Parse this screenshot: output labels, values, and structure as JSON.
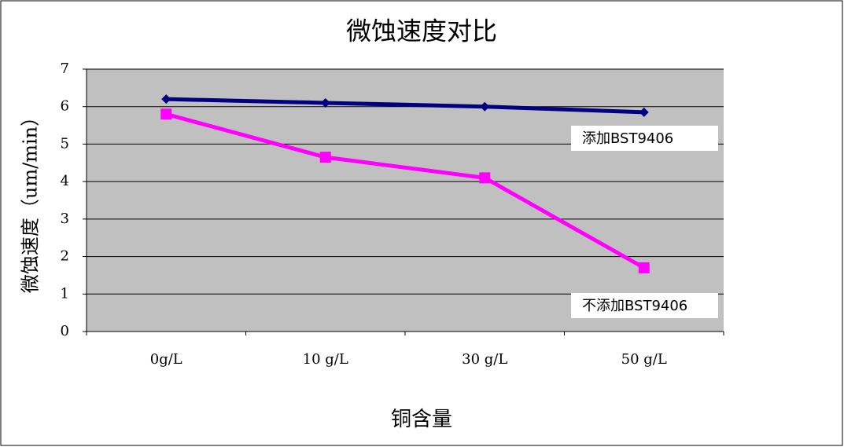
{
  "chart_data": {
    "type": "line",
    "title": "微蚀速度对比",
    "x_label": "铜含量",
    "y_label": "微蚀速度（um/min）",
    "categories": [
      "0g/L",
      "10 g/L",
      "30 g/L",
      "50 g/L"
    ],
    "series": [
      {
        "name": "添加BST9406",
        "color": "#000080",
        "marker": "diamond",
        "values": [
          6.2,
          6.1,
          6.0,
          5.85
        ]
      },
      {
        "name": "不添加BST9406",
        "color": "#ff00ff",
        "marker": "square",
        "values": [
          5.8,
          4.65,
          4.1,
          1.7
        ]
      }
    ],
    "ylim": [
      0,
      7
    ],
    "yticks": [
      0,
      1,
      2,
      3,
      4,
      5,
      6,
      7
    ],
    "grid": true
  }
}
